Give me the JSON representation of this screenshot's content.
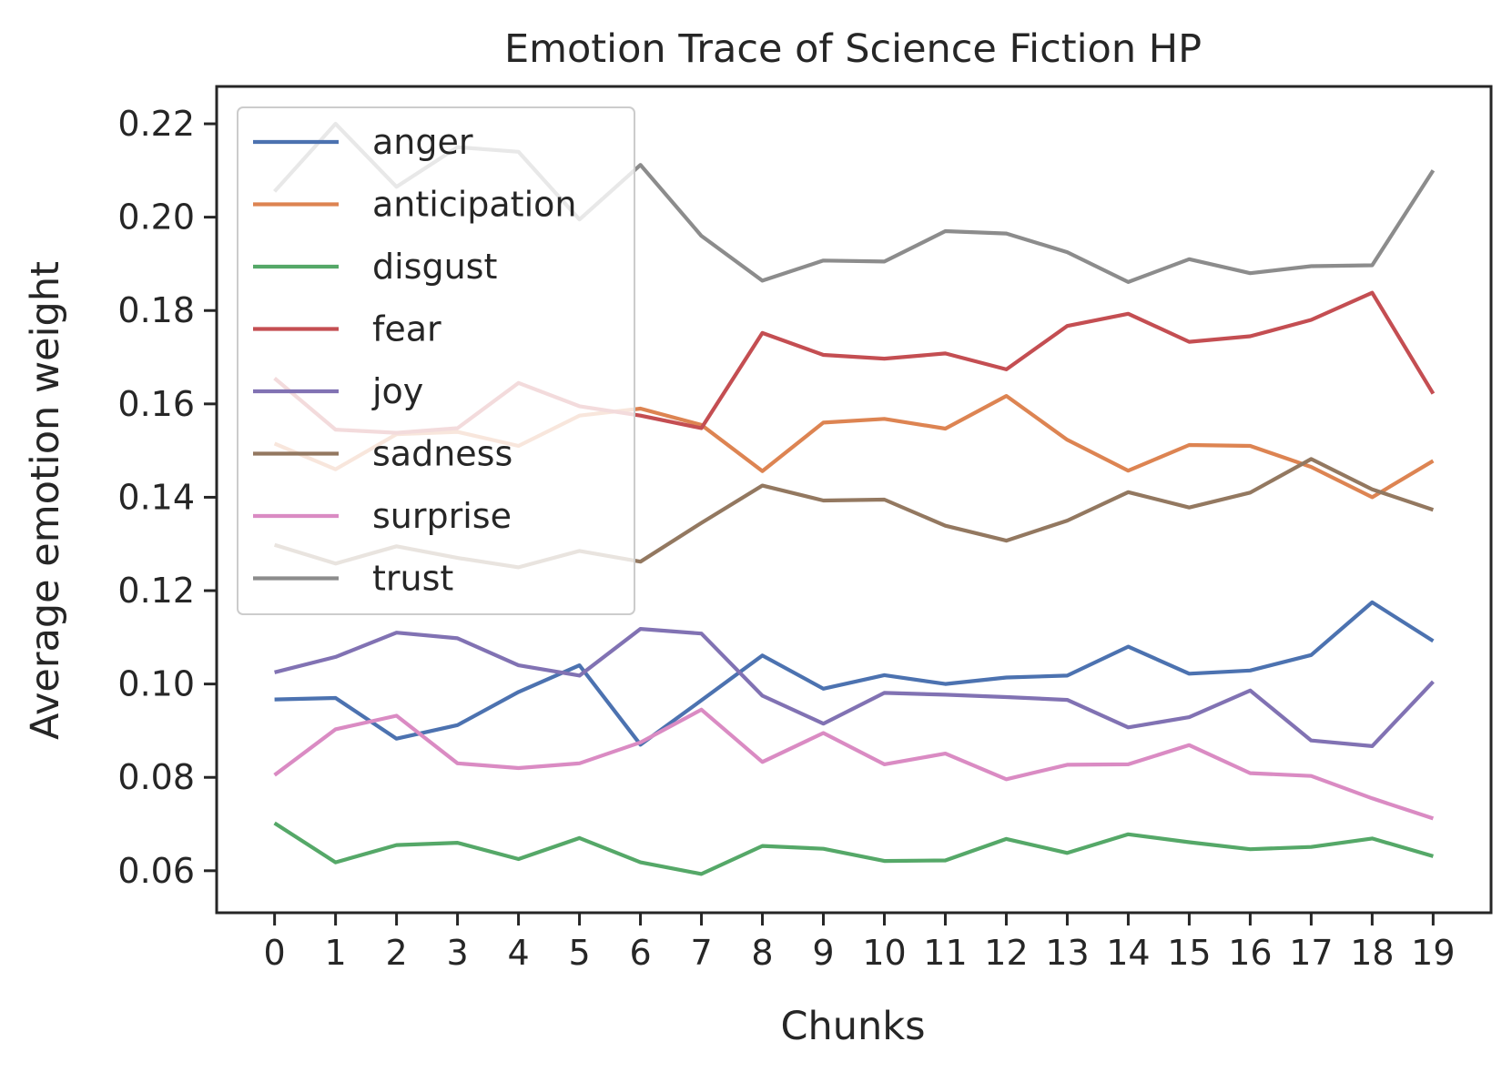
{
  "chart_data": {
    "type": "line",
    "title": "Emotion Trace of Science Fiction HP",
    "xlabel": "Chunks",
    "ylabel": "Average emotion weight",
    "x": [
      0,
      1,
      2,
      3,
      4,
      5,
      6,
      7,
      8,
      9,
      10,
      11,
      12,
      13,
      14,
      15,
      16,
      17,
      18,
      19
    ],
    "xticks": [
      "0",
      "1",
      "2",
      "3",
      "4",
      "5",
      "6",
      "7",
      "8",
      "9",
      "10",
      "11",
      "12",
      "13",
      "14",
      "15",
      "16",
      "17",
      "18",
      "19"
    ],
    "yticks": [
      "0.06",
      "0.08",
      "0.10",
      "0.12",
      "0.14",
      "0.16",
      "0.18",
      "0.20",
      "0.22"
    ],
    "ylim": [
      0.051,
      0.228
    ],
    "xlim": [
      -0.95,
      19.95
    ],
    "grid": false,
    "legend_position": "upper-left",
    "series": [
      {
        "name": "anger",
        "color": "#4c72b0",
        "values": [
          0.0967,
          0.097,
          0.0883,
          0.0912,
          0.0983,
          0.104,
          0.087,
          0.0965,
          0.1061,
          0.099,
          0.1019,
          0.1,
          0.1014,
          0.1018,
          0.108,
          0.1022,
          0.1029,
          0.1062,
          0.1175,
          0.1092
        ]
      },
      {
        "name": "anticipation",
        "color": "#dd8452",
        "values": [
          0.1515,
          0.146,
          0.1535,
          0.154,
          0.151,
          0.1575,
          0.159,
          0.1555,
          0.1456,
          0.156,
          0.1568,
          0.1547,
          0.1617,
          0.1523,
          0.1457,
          0.1512,
          0.151,
          0.1465,
          0.14,
          0.1478
        ]
      },
      {
        "name": "disgust",
        "color": "#55a868",
        "values": [
          0.0702,
          0.0618,
          0.0655,
          0.066,
          0.0625,
          0.067,
          0.0618,
          0.0593,
          0.0653,
          0.0647,
          0.0621,
          0.0622,
          0.0668,
          0.0638,
          0.0678,
          0.0661,
          0.0646,
          0.0651,
          0.0669,
          0.0631
        ]
      },
      {
        "name": "fear",
        "color": "#c44e52",
        "values": [
          0.1655,
          0.1545,
          0.1538,
          0.1548,
          0.1645,
          0.1595,
          0.1575,
          0.1548,
          0.1752,
          0.1705,
          0.1697,
          0.1708,
          0.1674,
          0.1767,
          0.1793,
          0.1733,
          0.1745,
          0.178,
          0.1838,
          0.1622
        ]
      },
      {
        "name": "joy",
        "color": "#8172b3",
        "values": [
          0.1025,
          0.1058,
          0.111,
          0.1098,
          0.104,
          0.1018,
          0.1118,
          0.1108,
          0.0975,
          0.0915,
          0.0981,
          0.0977,
          0.0972,
          0.0966,
          0.0907,
          0.0929,
          0.0986,
          0.0879,
          0.0867,
          0.1005
        ]
      },
      {
        "name": "sadness",
        "color": "#937860",
        "values": [
          0.1298,
          0.1258,
          0.1295,
          0.127,
          0.125,
          0.1285,
          0.1262,
          0.1345,
          0.1425,
          0.1393,
          0.1395,
          0.1339,
          0.1307,
          0.135,
          0.1411,
          0.1378,
          0.141,
          0.1482,
          0.1417,
          0.1373
        ]
      },
      {
        "name": "surprise",
        "color": "#da8bc3",
        "values": [
          0.0805,
          0.0903,
          0.0932,
          0.083,
          0.082,
          0.083,
          0.0875,
          0.0945,
          0.0833,
          0.0895,
          0.0828,
          0.0851,
          0.0796,
          0.0827,
          0.0828,
          0.0869,
          0.0809,
          0.0803,
          0.0755,
          0.0712
        ]
      },
      {
        "name": "trust",
        "color": "#8c8c8c",
        "values": [
          0.2055,
          0.22,
          0.2065,
          0.215,
          0.214,
          0.1995,
          0.2112,
          0.196,
          0.1864,
          0.1907,
          0.1905,
          0.197,
          0.1965,
          0.1925,
          0.1861,
          0.191,
          0.188,
          0.1895,
          0.1897,
          0.21
        ]
      }
    ]
  }
}
